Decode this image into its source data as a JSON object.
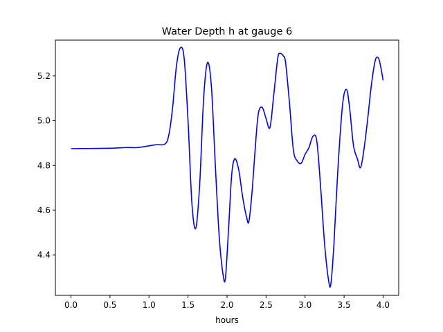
{
  "chart_data": {
    "type": "line",
    "title": "Water Depth h at gauge 6",
    "xlabel": "hours",
    "ylabel": "",
    "xlim": [
      -0.2,
      4.2
    ],
    "ylim": [
      4.22,
      5.36
    ],
    "xticks": [
      0.0,
      0.5,
      1.0,
      1.5,
      2.0,
      2.5,
      3.0,
      3.5,
      4.0
    ],
    "xtick_labels": [
      "0.0",
      "0.5",
      "1.0",
      "1.5",
      "2.0",
      "2.5",
      "3.0",
      "3.5",
      "4.0"
    ],
    "yticks": [
      4.4,
      4.6,
      4.8,
      5.0,
      5.2
    ],
    "ytick_labels": [
      "4.4",
      "4.6",
      "4.8",
      "5.0",
      "5.2"
    ],
    "grid": false,
    "series": [
      {
        "color": "#0000ff",
        "x": [
          0.0,
          0.5,
          0.7,
          0.85,
          1.0,
          1.1,
          1.2,
          1.25,
          1.3,
          1.35,
          1.4,
          1.45,
          1.5,
          1.55,
          1.6,
          1.65,
          1.7,
          1.75,
          1.8,
          1.85,
          1.9,
          1.95,
          1.98,
          2.02,
          2.06,
          2.1,
          2.15,
          2.2,
          2.25,
          2.28,
          2.32,
          2.36,
          2.4,
          2.45,
          2.5,
          2.55,
          2.6,
          2.65,
          2.68,
          2.72,
          2.75,
          2.8,
          2.85,
          2.9,
          2.95,
          3.0,
          3.05,
          3.1,
          3.15,
          3.2,
          3.25,
          3.3,
          3.33,
          3.37,
          3.42,
          3.48,
          3.53,
          3.57,
          3.62,
          3.67,
          3.71,
          3.75,
          3.8,
          3.85,
          3.9,
          3.94,
          3.97,
          4.0
        ],
        "y": [
          4.875,
          4.877,
          4.88,
          4.88,
          4.888,
          4.893,
          4.895,
          4.93,
          5.05,
          5.24,
          5.325,
          5.28,
          5.0,
          4.63,
          4.52,
          4.72,
          5.1,
          5.26,
          5.15,
          4.8,
          4.48,
          4.31,
          4.3,
          4.52,
          4.76,
          4.83,
          4.78,
          4.66,
          4.57,
          4.55,
          4.68,
          4.87,
          5.03,
          5.06,
          5.01,
          4.97,
          5.12,
          5.28,
          5.3,
          5.29,
          5.26,
          5.08,
          4.87,
          4.82,
          4.81,
          4.85,
          4.88,
          4.93,
          4.91,
          4.7,
          4.45,
          4.29,
          4.27,
          4.45,
          4.78,
          5.07,
          5.14,
          5.06,
          4.89,
          4.83,
          4.79,
          4.86,
          5.0,
          5.16,
          5.27,
          5.28,
          5.24,
          5.18
        ]
      }
    ]
  }
}
